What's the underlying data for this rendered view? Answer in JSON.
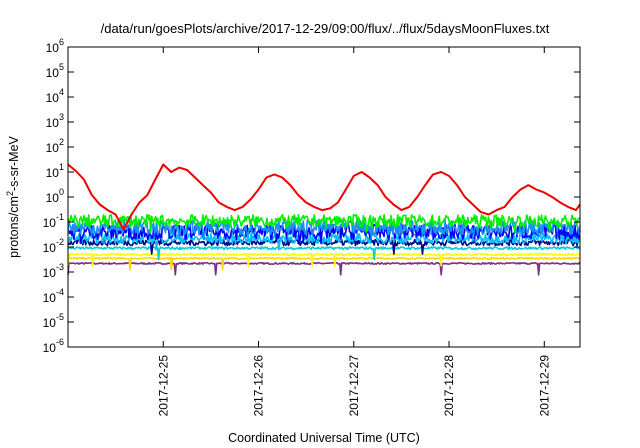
{
  "chart_data": {
    "type": "line",
    "title": "/data/run/goesPlots/archive/2017-12-29/09:00/flux/../flux/5daysMoonFluxes.txt",
    "xlabel": "Coordinated Universal Time (UTC)",
    "ylabel": {
      "base": "protons/cm",
      "sup": "2",
      "rest": "-s-sr-MeV"
    },
    "y_scale": "log",
    "ylim": [
      1e-06,
      1000000.0
    ],
    "y_ticks": [
      {
        "base": "10",
        "exp": "-6",
        "value": 1e-06
      },
      {
        "base": "10",
        "exp": "-5",
        "value": 1e-05
      },
      {
        "base": "10",
        "exp": "-4",
        "value": 0.0001
      },
      {
        "base": "10",
        "exp": "-3",
        "value": 0.001
      },
      {
        "base": "10",
        "exp": "-2",
        "value": 0.01
      },
      {
        "base": "10",
        "exp": "-1",
        "value": 0.1
      },
      {
        "base": "10",
        "exp": "0",
        "value": 1
      },
      {
        "base": "10",
        "exp": "1",
        "value": 10
      },
      {
        "base": "10",
        "exp": "2",
        "value": 100
      },
      {
        "base": "10",
        "exp": "3",
        "value": 1000
      },
      {
        "base": "10",
        "exp": "4",
        "value": 10000
      },
      {
        "base": "10",
        "exp": "5",
        "value": 100000
      },
      {
        "base": "10",
        "exp": "6",
        "value": 1000000
      }
    ],
    "xlim": [
      "2017-12-24T00:00",
      "2017-12-29T09:00"
    ],
    "x_ticks": [
      "2017-12-25",
      "2017-12-26",
      "2017-12-27",
      "2017-12-28",
      "2017-12-29"
    ],
    "grid": false,
    "legend": "none",
    "series": [
      {
        "color": "#ee0000",
        "kind": "red",
        "x": [
          "2017-12-24T00:00",
          "2017-12-24T02:00",
          "2017-12-24T04:00",
          "2017-12-24T06:00",
          "2017-12-24T08:00",
          "2017-12-24T10:00",
          "2017-12-24T12:00",
          "2017-12-24T14:00",
          "2017-12-24T16:00",
          "2017-12-24T18:00",
          "2017-12-24T20:00",
          "2017-12-24T22:00",
          "2017-12-25T00:00",
          "2017-12-25T02:00",
          "2017-12-25T04:00",
          "2017-12-25T06:00",
          "2017-12-25T08:00",
          "2017-12-25T10:00",
          "2017-12-25T12:00",
          "2017-12-25T14:00",
          "2017-12-25T16:00",
          "2017-12-25T18:00",
          "2017-12-25T20:00",
          "2017-12-25T22:00",
          "2017-12-26T00:00",
          "2017-12-26T02:00",
          "2017-12-26T04:00",
          "2017-12-26T06:00",
          "2017-12-26T08:00",
          "2017-12-26T10:00",
          "2017-12-26T12:00",
          "2017-12-26T14:00",
          "2017-12-26T16:00",
          "2017-12-26T18:00",
          "2017-12-26T20:00",
          "2017-12-26T22:00",
          "2017-12-27T00:00",
          "2017-12-27T02:00",
          "2017-12-27T04:00",
          "2017-12-27T06:00",
          "2017-12-27T08:00",
          "2017-12-27T10:00",
          "2017-12-27T12:00",
          "2017-12-27T14:00",
          "2017-12-27T16:00",
          "2017-12-27T18:00",
          "2017-12-27T20:00",
          "2017-12-27T22:00",
          "2017-12-28T00:00",
          "2017-12-28T02:00",
          "2017-12-28T04:00",
          "2017-12-28T06:00",
          "2017-12-28T08:00",
          "2017-12-28T10:00",
          "2017-12-28T12:00",
          "2017-12-28T14:00",
          "2017-12-28T16:00",
          "2017-12-28T18:00",
          "2017-12-28T20:00",
          "2017-12-28T22:00",
          "2017-12-29T00:00",
          "2017-12-29T02:00",
          "2017-12-29T04:00",
          "2017-12-29T06:00",
          "2017-12-29T08:00",
          "2017-12-29T09:00"
        ],
        "values": [
          20,
          11,
          5,
          1.2,
          0.5,
          0.3,
          0.2,
          0.05,
          0.2,
          0.6,
          1.2,
          5,
          20,
          10,
          15,
          12,
          6,
          3,
          1.5,
          0.6,
          0.4,
          0.3,
          0.4,
          0.8,
          2,
          6,
          8,
          6,
          3,
          1.2,
          0.6,
          0.4,
          0.3,
          0.35,
          0.6,
          2,
          7,
          10,
          6,
          3,
          1,
          0.5,
          0.3,
          0.4,
          1,
          3,
          8,
          10,
          7,
          3,
          1,
          0.5,
          0.25,
          0.2,
          0.3,
          0.4,
          1,
          2,
          3,
          2,
          1.5,
          1,
          0.6,
          0.4,
          0.3,
          0.5
        ]
      },
      {
        "color": "#00ee00",
        "kind": "noisy",
        "level": 0.11,
        "amp": 0.25,
        "dips": 4
      },
      {
        "color": "#1a90ff",
        "kind": "noisy",
        "level": 0.06,
        "amp": 0.3,
        "dips": 3
      },
      {
        "color": "#0000ff",
        "kind": "noisy",
        "level": 0.04,
        "amp": 0.3,
        "dips": 4
      },
      {
        "color": "#00bfff",
        "kind": "noisy",
        "level": 0.022,
        "amp": 0.2,
        "dips": 2
      },
      {
        "color": "#00008b",
        "kind": "noisy",
        "level": 0.015,
        "amp": 0.12,
        "dips": 3
      },
      {
        "color": "#00cfcf",
        "kind": "noisy",
        "level": 0.009,
        "amp": 0.05,
        "dips": 2
      },
      {
        "color": "#ffff00",
        "kind": "noisy",
        "level": 0.005,
        "amp": 0.04,
        "dips": 6
      },
      {
        "color": "#ffd700",
        "kind": "noisy",
        "level": 0.0035,
        "amp": 0.03,
        "dips": 3
      },
      {
        "color": "#7b2c8c",
        "kind": "noisy",
        "level": 0.0022,
        "amp": 0.03,
        "dips": 6
      }
    ]
  }
}
